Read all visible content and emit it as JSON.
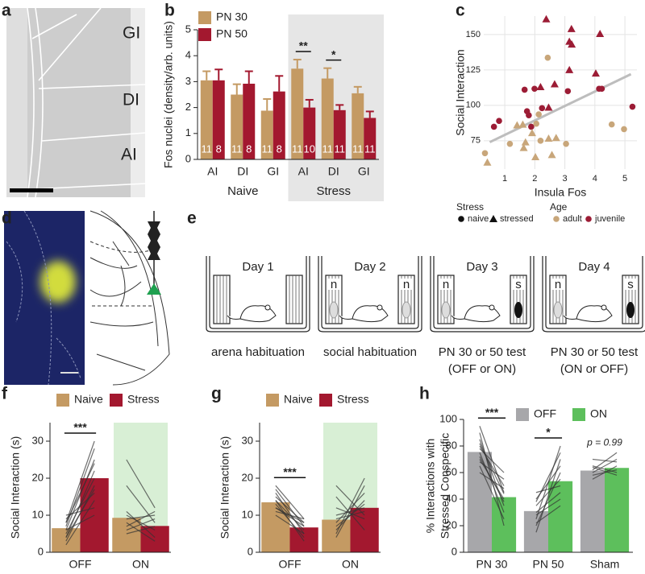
{
  "panel_letters": [
    "a",
    "b",
    "c",
    "d",
    "e",
    "f",
    "g",
    "h"
  ],
  "micrograph": {
    "regions": [
      "GI",
      "DI",
      "AI"
    ]
  },
  "protocol": {
    "arenas": [
      {
        "day": "Day 1",
        "caption": [
          "arena habituation"
        ]
      },
      {
        "day": "Day 2",
        "cages": [
          "n",
          "n"
        ],
        "caption": [
          "social habituation"
        ]
      },
      {
        "day": "Day 3",
        "cages": [
          "n",
          "s"
        ],
        "caption": [
          "PN 30 or 50 test",
          "(OFF or ON)"
        ]
      },
      {
        "day": "Day 4",
        "cages": [
          "n",
          "s"
        ],
        "caption": [
          "PN 30 or 50 test",
          "(ON or OFF)"
        ]
      }
    ]
  },
  "chart_data": [
    {
      "type": "bar",
      "ylabel": "Fos nuclei (density/arb. units)",
      "ylim": [
        0,
        5
      ],
      "yticks": [
        0,
        1,
        2,
        3,
        4,
        5
      ],
      "categories": [
        "AI",
        "DI",
        "GI",
        "AI",
        "DI",
        "GI"
      ],
      "groups": [
        "Naive",
        "Stress"
      ],
      "group_backgrounds": [
        null,
        "#e6e6e6"
      ],
      "legend": "top-left",
      "series": [
        {
          "name": "PN 30",
          "color": "#c49a63",
          "values": [
            3.05,
            2.5,
            1.88,
            3.5,
            3.12,
            2.55
          ],
          "errors": [
            0.35,
            0.4,
            0.45,
            0.35,
            0.4,
            0.25
          ],
          "n": [
            11,
            11,
            11,
            11,
            11,
            11
          ]
        },
        {
          "name": "PN 50",
          "color": "#a3182f",
          "values": [
            3.05,
            2.92,
            2.62,
            2.0,
            1.9,
            1.6
          ],
          "errors": [
            0.42,
            0.48,
            0.6,
            0.3,
            0.2,
            0.25
          ],
          "n": [
            8,
            8,
            8,
            10,
            11,
            11
          ]
        }
      ],
      "annotations": [
        {
          "text": "**",
          "at": 3,
          "bracket": true
        },
        {
          "text": "*",
          "at": 4,
          "bracket": true
        }
      ]
    },
    {
      "type": "scatter",
      "xlabel": "Insula Fos",
      "ylabel": "Social Interaction",
      "xlim": [
        0.3,
        5.4
      ],
      "xticks": [
        1,
        2,
        3,
        4,
        5
      ],
      "ylim": [
        55,
        163
      ],
      "yticks": [
        75,
        100,
        125,
        150
      ],
      "grid": true,
      "legend": {
        "shape_title": "Stress",
        "shapes": [
          {
            "label": "naive",
            "marker": "circle"
          },
          {
            "label": "stressed",
            "marker": "triangle"
          }
        ],
        "color_title": "Age",
        "colors": [
          {
            "label": "adult",
            "color": "#c8a67a"
          },
          {
            "label": "juvenile",
            "color": "#9c1c35"
          }
        ]
      },
      "trend": {
        "color": "#bdbdbd",
        "x": [
          0.5,
          5.2
        ],
        "y": [
          74,
          122
        ]
      },
      "series": [
        {
          "shape": 1,
          "color": 1,
          "x": [
            2.38,
            3.22,
            3.15,
            3.23,
            4.17,
            4.03,
            2.19,
            2.66,
            2.46,
            3.15
          ],
          "y": [
            160.9,
            154,
            145,
            143,
            150.5,
            122.6,
            113,
            115,
            98.5,
            125
          ]
        },
        {
          "shape": 0,
          "color": 1,
          "x": [
            0.64,
            0.81,
            1.66,
            1.99,
            1.74,
            1.8,
            1.88,
            2.24,
            3.1,
            4.14,
            4.23,
            5.25
          ],
          "y": [
            84.9,
            89,
            111,
            111.7,
            95.8,
            93,
            84.9,
            98,
            110,
            111.7,
            111.7,
            99
          ]
        },
        {
          "shape": 0,
          "color": 0,
          "x": [
            2.43,
            0.34,
            2.13,
            2.05,
            1.17,
            2.19,
            3.04,
            4.56,
            4.97
          ],
          "y": [
            133.6,
            66.2,
            93.6,
            87,
            72.8,
            75,
            72.8,
            86.5,
            83.2
          ]
        },
        {
          "shape": 1,
          "color": 0,
          "x": [
            0.42,
            1.41,
            1.6,
            1.69,
            1.63,
            2.02,
            2.57,
            2.71,
            2.46,
            1.91
          ],
          "y": [
            59.7,
            86,
            86.5,
            74,
            70,
            63.5,
            65,
            77,
            76.6,
            80.5
          ]
        }
      ]
    },
    {
      "type": "bar",
      "ylabel": "Social Interaction (s)",
      "ylim": [
        0,
        35
      ],
      "yticks": [
        0,
        10,
        20,
        30
      ],
      "categories": [
        "OFF",
        "ON"
      ],
      "category_backgrounds": [
        null,
        "#d8efd5"
      ],
      "legend": "top",
      "series": [
        {
          "name": "Naive",
          "color": "#c49a63",
          "values": [
            6.5,
            9.3
          ]
        },
        {
          "name": "Stress",
          "color": "#a3182f",
          "values": [
            20,
            7.1
          ]
        }
      ],
      "pairs": [
        [
          [
            2,
            14
          ],
          [
            3,
            18
          ],
          [
            4,
            22
          ],
          [
            5,
            20
          ],
          [
            6,
            25
          ],
          [
            7,
            28
          ],
          [
            8,
            30
          ],
          [
            9,
            16
          ],
          [
            10,
            12
          ],
          [
            6,
            10
          ],
          [
            4,
            17
          ],
          [
            8,
            24
          ]
        ],
        [
          [
            25,
            12
          ],
          [
            18,
            8
          ],
          [
            11,
            4
          ],
          [
            9,
            10
          ],
          [
            8,
            3
          ],
          [
            6,
            9
          ],
          [
            5,
            7
          ],
          [
            10,
            6
          ],
          [
            7,
            11
          ]
        ]
      ],
      "annotations": [
        {
          "text": "***",
          "at": 0,
          "bracket": true
        }
      ]
    },
    {
      "type": "bar",
      "ylabel": "Social Interaction (s)",
      "ylim": [
        0,
        35
      ],
      "yticks": [
        0,
        10,
        20,
        30
      ],
      "categories": [
        "OFF",
        "ON"
      ],
      "category_backgrounds": [
        null,
        "#d8efd5"
      ],
      "legend": "top",
      "series": [
        {
          "name": "Naive",
          "color": "#c49a63",
          "values": [
            13.5,
            8.8
          ]
        },
        {
          "name": "Stress",
          "color": "#a3182f",
          "values": [
            6.7,
            12.0
          ]
        }
      ],
      "pairs": [
        [
          [
            18,
            9
          ],
          [
            17,
            7
          ],
          [
            16,
            5
          ],
          [
            15,
            8
          ],
          [
            14,
            6
          ],
          [
            13,
            4
          ],
          [
            12,
            7
          ],
          [
            11,
            9
          ],
          [
            10,
            5
          ],
          [
            14,
            3
          ],
          [
            12,
            8
          ]
        ],
        [
          [
            4,
            18
          ],
          [
            6,
            14
          ],
          [
            8,
            16
          ],
          [
            10,
            12
          ],
          [
            12,
            9
          ],
          [
            15,
            6
          ],
          [
            18,
            10
          ],
          [
            7,
            13
          ],
          [
            5,
            20
          ],
          [
            9,
            11
          ]
        ]
      ],
      "annotations": [
        {
          "text": "***",
          "at": 0,
          "bracket": true
        }
      ]
    },
    {
      "type": "bar",
      "ylabel": [
        "% Interactions with",
        "Stressed Conspecific"
      ],
      "ylim": [
        0,
        100
      ],
      "yticks": [
        0,
        20,
        40,
        60,
        80,
        100
      ],
      "categories": [
        "PN 30",
        "PN 50",
        "Sham"
      ],
      "legend": "top-right",
      "series": [
        {
          "name": "OFF",
          "color": "#a7a7aa",
          "values": [
            75.5,
            31,
            61.5
          ]
        },
        {
          "name": "ON",
          "color": "#5dbf5c",
          "values": [
            41.5,
            53.5,
            63.5
          ]
        }
      ],
      "pairs": [
        [
          [
            95,
            45
          ],
          [
            90,
            20
          ],
          [
            85,
            35
          ],
          [
            80,
            50
          ],
          [
            78,
            60
          ],
          [
            75,
            30
          ],
          [
            70,
            40
          ],
          [
            68,
            55
          ],
          [
            65,
            25
          ],
          [
            60,
            48
          ],
          [
            72,
            38
          ],
          [
            82,
            44
          ]
        ],
        [
          [
            15,
            70
          ],
          [
            20,
            60
          ],
          [
            25,
            80
          ],
          [
            30,
            45
          ],
          [
            35,
            55
          ],
          [
            40,
            65
          ],
          [
            45,
            50
          ],
          [
            28,
            40
          ],
          [
            38,
            75
          ],
          [
            22,
            35
          ]
        ],
        [
          [
            55,
            65
          ],
          [
            60,
            70
          ],
          [
            58,
            62
          ],
          [
            65,
            60
          ],
          [
            70,
            68
          ],
          [
            62,
            75
          ],
          [
            64,
            58
          ]
        ]
      ],
      "annotations": [
        {
          "text": "***",
          "at": 0,
          "bracket": true
        },
        {
          "text": "*",
          "at": 1,
          "bracket": true
        },
        {
          "text": "p = 0.99",
          "at": 2,
          "bracket": false,
          "italic": true
        }
      ]
    }
  ]
}
